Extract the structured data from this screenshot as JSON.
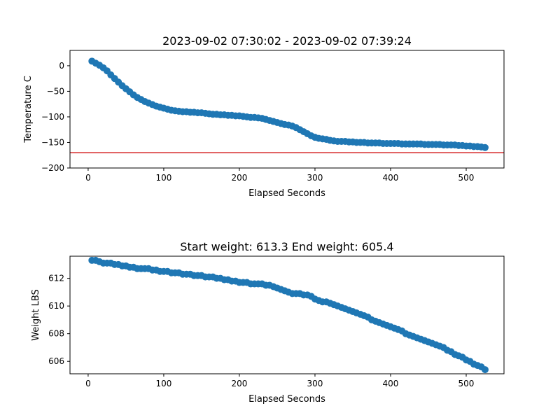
{
  "chart_data": [
    {
      "type": "scatter",
      "title": "2023-09-02 07:30:02 - 2023-09-02 07:39:24",
      "xlabel": "Elapsed Seconds",
      "ylabel": "Temperature C",
      "xlim": [
        -24,
        550
      ],
      "ylim": [
        -200,
        30
      ],
      "xticks": [
        0,
        100,
        200,
        300,
        400,
        500
      ],
      "yticks": [
        0,
        -50,
        -100,
        -150,
        -200
      ],
      "xtick_labels": [
        "0",
        "100",
        "200",
        "300",
        "400",
        "500"
      ],
      "ytick_labels": [
        "0",
        "−50",
        "−100",
        "−150",
        "−200"
      ],
      "grid": false,
      "marker_color": "#1f77b4",
      "series": [
        {
          "x": [
            5,
            10,
            15,
            20,
            25,
            30,
            35,
            40,
            45,
            50,
            55,
            60,
            65,
            70,
            75,
            80,
            85,
            90,
            95,
            100,
            105,
            110,
            115,
            120,
            125,
            130,
            135,
            140,
            145,
            150,
            155,
            160,
            165,
            170,
            175,
            180,
            185,
            190,
            195,
            200,
            205,
            210,
            215,
            220,
            225,
            230,
            235,
            240,
            245,
            250,
            255,
            260,
            265,
            270,
            275,
            280,
            285,
            290,
            295,
            300,
            305,
            310,
            315,
            320,
            325,
            330,
            335,
            340,
            345,
            350,
            355,
            360,
            365,
            370,
            375,
            380,
            385,
            390,
            395,
            400,
            405,
            410,
            415,
            420,
            425,
            430,
            435,
            440,
            445,
            450,
            455,
            460,
            465,
            470,
            475,
            480,
            485,
            490,
            495,
            500,
            505,
            510,
            515,
            520,
            525
          ],
          "y": [
            9,
            5,
            1,
            -4,
            -10,
            -18,
            -25,
            -32,
            -39,
            -45,
            -51,
            -57,
            -62,
            -66,
            -70,
            -73,
            -76,
            -79,
            -81,
            -83,
            -85,
            -87,
            -88,
            -89,
            -90,
            -90,
            -91,
            -91,
            -92,
            -92,
            -93,
            -94,
            -95,
            -95,
            -96,
            -96,
            -97,
            -97,
            -98,
            -98,
            -99,
            -100,
            -101,
            -101,
            -102,
            -103,
            -105,
            -107,
            -109,
            -111,
            -113,
            -115,
            -116,
            -118,
            -121,
            -125,
            -129,
            -133,
            -137,
            -140,
            -142,
            -143,
            -144,
            -146,
            -147,
            -148,
            -148,
            -148,
            -149,
            -149,
            -150,
            -150,
            -150,
            -151,
            -151,
            -151,
            -151,
            -152,
            -152,
            -152,
            -152,
            -152,
            -153,
            -153,
            -153,
            -153,
            -153,
            -153,
            -154,
            -154,
            -154,
            -154,
            -154,
            -155,
            -155,
            -155,
            -155,
            -156,
            -156,
            -157,
            -157,
            -158,
            -158,
            -159,
            -160
          ]
        }
      ],
      "reference_lines": [
        {
          "y": -170,
          "color": "#d62728"
        }
      ]
    },
    {
      "type": "scatter",
      "title": "Start weight: 613.3 End weight: 605.4",
      "xlabel": "Elapsed Seconds",
      "ylabel": "Weight LBS",
      "xlim": [
        -24,
        550
      ],
      "ylim": [
        605.1,
        613.6
      ],
      "xticks": [
        0,
        100,
        200,
        300,
        400,
        500
      ],
      "yticks": [
        606,
        608,
        610,
        612
      ],
      "xtick_labels": [
        "0",
        "100",
        "200",
        "300",
        "400",
        "500"
      ],
      "ytick_labels": [
        "606",
        "608",
        "610",
        "612"
      ],
      "grid": false,
      "marker_color": "#1f77b4",
      "series": [
        {
          "x": [
            5,
            10,
            15,
            20,
            25,
            30,
            35,
            40,
            45,
            50,
            55,
            60,
            65,
            70,
            75,
            80,
            85,
            90,
            95,
            100,
            105,
            110,
            115,
            120,
            125,
            130,
            135,
            140,
            145,
            150,
            155,
            160,
            165,
            170,
            175,
            180,
            185,
            190,
            195,
            200,
            205,
            210,
            215,
            220,
            225,
            230,
            235,
            240,
            245,
            250,
            255,
            260,
            265,
            270,
            275,
            280,
            285,
            290,
            295,
            300,
            305,
            310,
            315,
            320,
            325,
            330,
            335,
            340,
            345,
            350,
            355,
            360,
            365,
            370,
            375,
            380,
            385,
            390,
            395,
            400,
            405,
            410,
            415,
            420,
            425,
            430,
            435,
            440,
            445,
            450,
            455,
            460,
            465,
            470,
            475,
            480,
            485,
            490,
            495,
            500,
            505,
            510,
            515,
            520,
            525
          ],
          "y": [
            613.3,
            613.3,
            613.2,
            613.1,
            613.1,
            613.1,
            613.0,
            613.0,
            612.9,
            612.9,
            612.8,
            612.8,
            612.7,
            612.7,
            612.7,
            612.7,
            612.6,
            612.6,
            612.5,
            612.5,
            612.5,
            612.4,
            612.4,
            612.4,
            612.3,
            612.3,
            612.3,
            612.2,
            612.2,
            612.2,
            612.1,
            612.1,
            612.1,
            612.0,
            612.0,
            611.9,
            611.9,
            611.8,
            611.8,
            611.7,
            611.7,
            611.7,
            611.6,
            611.6,
            611.6,
            611.6,
            611.5,
            611.5,
            611.4,
            611.3,
            611.2,
            611.1,
            611.0,
            610.9,
            610.9,
            610.9,
            610.8,
            610.8,
            610.7,
            610.5,
            610.4,
            610.3,
            610.3,
            610.2,
            610.1,
            610.0,
            609.9,
            609.8,
            609.7,
            609.6,
            609.5,
            609.4,
            609.3,
            609.2,
            609.0,
            608.9,
            608.8,
            608.7,
            608.6,
            608.5,
            608.4,
            608.3,
            608.2,
            608.0,
            607.9,
            607.8,
            607.7,
            607.6,
            607.5,
            607.4,
            607.3,
            607.2,
            607.1,
            607.0,
            606.8,
            606.7,
            606.5,
            606.4,
            606.3,
            606.1,
            606.0,
            605.8,
            605.7,
            605.6,
            605.4
          ]
        }
      ]
    }
  ]
}
